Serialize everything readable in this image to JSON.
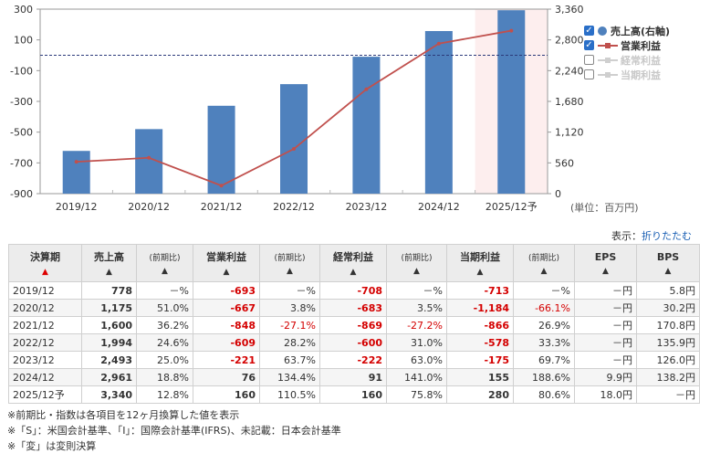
{
  "chart_data": {
    "type": "bar+line",
    "categories": [
      "2019/12",
      "2020/12",
      "2021/12",
      "2022/12",
      "2023/12",
      "2024/12",
      "2025/12予"
    ],
    "series": [
      {
        "name": "売上高(右軸)",
        "kind": "bar",
        "axis": "right",
        "values": [
          778,
          1175,
          1600,
          1994,
          2493,
          2961,
          3340
        ]
      },
      {
        "name": "営業利益",
        "kind": "line",
        "axis": "left",
        "values": [
          -693,
          -667,
          -848,
          -609,
          -221,
          76,
          160
        ]
      }
    ],
    "left_axis": {
      "ticks": [
        "300",
        "100",
        "-100",
        "-300",
        "-500",
        "-700",
        "-900"
      ],
      "ylim": [
        -900,
        300
      ]
    },
    "right_axis": {
      "ticks": [
        "3,360",
        "2,800",
        "2,240",
        "1,680",
        "1,120",
        "560",
        "0"
      ],
      "ylim": [
        0,
        3360
      ]
    },
    "zero_reference": 0,
    "forecast_highlight": "2025/12予",
    "unit": "(単位：百万円)",
    "colors": {
      "bar": "#4f81bd",
      "line": "#c0504d",
      "forecast_bg": "#fdeeee",
      "dashed": "#2b3a7a"
    }
  },
  "legend": [
    {
      "label": "売上高(右軸)",
      "checked": true,
      "marker": "dot",
      "active": true,
      "color": "#4f81bd"
    },
    {
      "label": "営業利益",
      "checked": true,
      "marker": "line",
      "active": true,
      "color": "#c0504d"
    },
    {
      "label": "経常利益",
      "checked": false,
      "marker": "line",
      "active": false,
      "color": "#cfcfcf"
    },
    {
      "label": "当期利益",
      "checked": false,
      "marker": "line",
      "active": false,
      "color": "#cfcfcf"
    }
  ],
  "display": {
    "label": "表示：",
    "link": "折りたたむ"
  },
  "table": {
    "headers": {
      "period": "決算期",
      "sales": "売上高",
      "yoy": "(前期比)",
      "op": "営業利益",
      "ord": "経常利益",
      "net": "当期利益",
      "eps": "EPS",
      "bps": "BPS",
      "arrow": "▲"
    },
    "rows": [
      [
        "2019/12",
        "778",
        "－%",
        "-693",
        "－%",
        "-708",
        "－%",
        "-713",
        "－%",
        "－円",
        "5.8円"
      ],
      [
        "2020/12",
        "1,175",
        "51.0%",
        "-667",
        "3.8%",
        "-683",
        "3.5%",
        "-1,184",
        "-66.1%",
        "－円",
        "30.2円"
      ],
      [
        "2021/12",
        "1,600",
        "36.2%",
        "-848",
        "-27.1%",
        "-869",
        "-27.2%",
        "-866",
        "26.9%",
        "－円",
        "170.8円"
      ],
      [
        "2022/12",
        "1,994",
        "24.6%",
        "-609",
        "28.2%",
        "-600",
        "31.0%",
        "-578",
        "33.3%",
        "－円",
        "135.9円"
      ],
      [
        "2023/12",
        "2,493",
        "25.0%",
        "-221",
        "63.7%",
        "-222",
        "63.0%",
        "-175",
        "69.7%",
        "－円",
        "126.0円"
      ],
      [
        "2024/12",
        "2,961",
        "18.8%",
        "76",
        "134.4%",
        "91",
        "141.0%",
        "155",
        "188.6%",
        "9.9円",
        "138.2円"
      ],
      [
        "2025/12予",
        "3,340",
        "12.8%",
        "160",
        "110.5%",
        "160",
        "75.8%",
        "280",
        "80.6%",
        "18.0円",
        "－円"
      ]
    ]
  },
  "notes": [
    "※前期比・指数は各項目を12ヶ月換算した値を表示",
    "※「S」：米国会計基準、「I」：国際会計基準(IFRS)、未記載：日本会計基準",
    "※「変」は変則決算"
  ]
}
